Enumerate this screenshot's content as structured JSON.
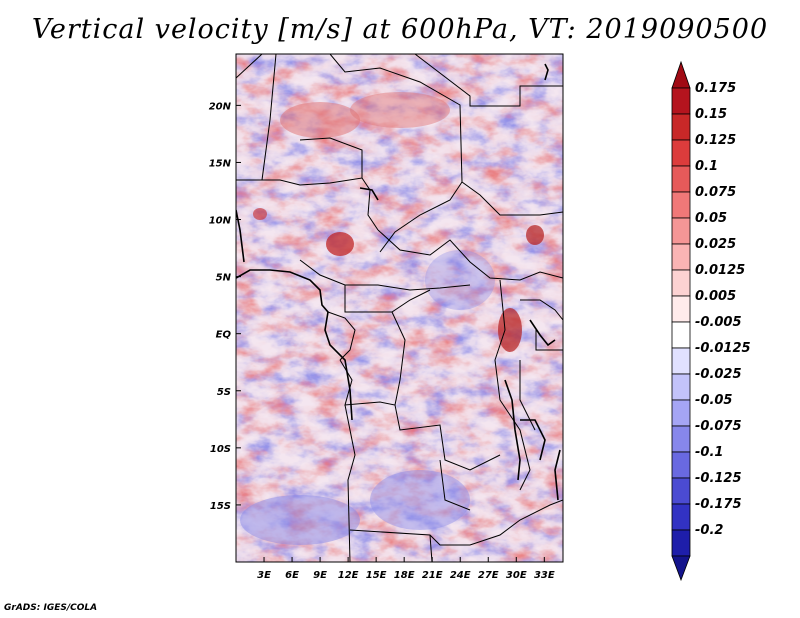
{
  "title": "Vertical velocity [m/s] at 600hPa, VT: 2019090500",
  "credit": "GrADS: IGES/COLA",
  "map": {
    "variable": "Vertical velocity",
    "units": "m/s",
    "level": "600hPa",
    "valid_time": "2019090500",
    "lon_range": [
      0,
      35
    ],
    "lat_range": [
      -20,
      24.5
    ],
    "lon_ticks": [
      {
        "value": 3,
        "label": "3E"
      },
      {
        "value": 6,
        "label": "6E"
      },
      {
        "value": 9,
        "label": "9E"
      },
      {
        "value": 12,
        "label": "12E"
      },
      {
        "value": 15,
        "label": "15E"
      },
      {
        "value": 18,
        "label": "18E"
      },
      {
        "value": 21,
        "label": "21E"
      },
      {
        "value": 24,
        "label": "24E"
      },
      {
        "value": 27,
        "label": "27E"
      },
      {
        "value": 30,
        "label": "30E"
      },
      {
        "value": 33,
        "label": "33E"
      }
    ],
    "lat_ticks": [
      {
        "value": 20,
        "label": "20N"
      },
      {
        "value": 15,
        "label": "15N"
      },
      {
        "value": 10,
        "label": "10N"
      },
      {
        "value": 5,
        "label": "5N"
      },
      {
        "value": 0,
        "label": "EQ"
      },
      {
        "value": -5,
        "label": "5S"
      },
      {
        "value": -10,
        "label": "10S"
      },
      {
        "value": -15,
        "label": "15S"
      }
    ]
  },
  "colorbar": {
    "levels": [
      {
        "label": "0.175",
        "color": "#b4141e"
      },
      {
        "label": "0.15",
        "color": "#c82828"
      },
      {
        "label": "0.125",
        "color": "#dc3c3c"
      },
      {
        "label": "0.1",
        "color": "#e65a5a"
      },
      {
        "label": "0.075",
        "color": "#f07878"
      },
      {
        "label": "0.05",
        "color": "#f59696"
      },
      {
        "label": "0.025",
        "color": "#fab4b4"
      },
      {
        "label": "0.0125",
        "color": "#fcd2d2"
      },
      {
        "label": "0.005",
        "color": "#ffebeb"
      },
      {
        "label": "-0.005",
        "color": "#ffffff"
      },
      {
        "label": "-0.0125",
        "color": "#e1e1ff"
      },
      {
        "label": "-0.025",
        "color": "#c3c3fa"
      },
      {
        "label": "-0.05",
        "color": "#a5a5f5"
      },
      {
        "label": "-0.075",
        "color": "#8787eb"
      },
      {
        "label": "-0.1",
        "color": "#6969e1"
      },
      {
        "label": "-0.125",
        "color": "#4b4bd2"
      },
      {
        "label": "-0.175",
        "color": "#3232c3"
      },
      {
        "label": "-0.2",
        "color": "#1e1eaa"
      }
    ],
    "top_color": "#a00a14",
    "bottom_color": "#14148c"
  }
}
